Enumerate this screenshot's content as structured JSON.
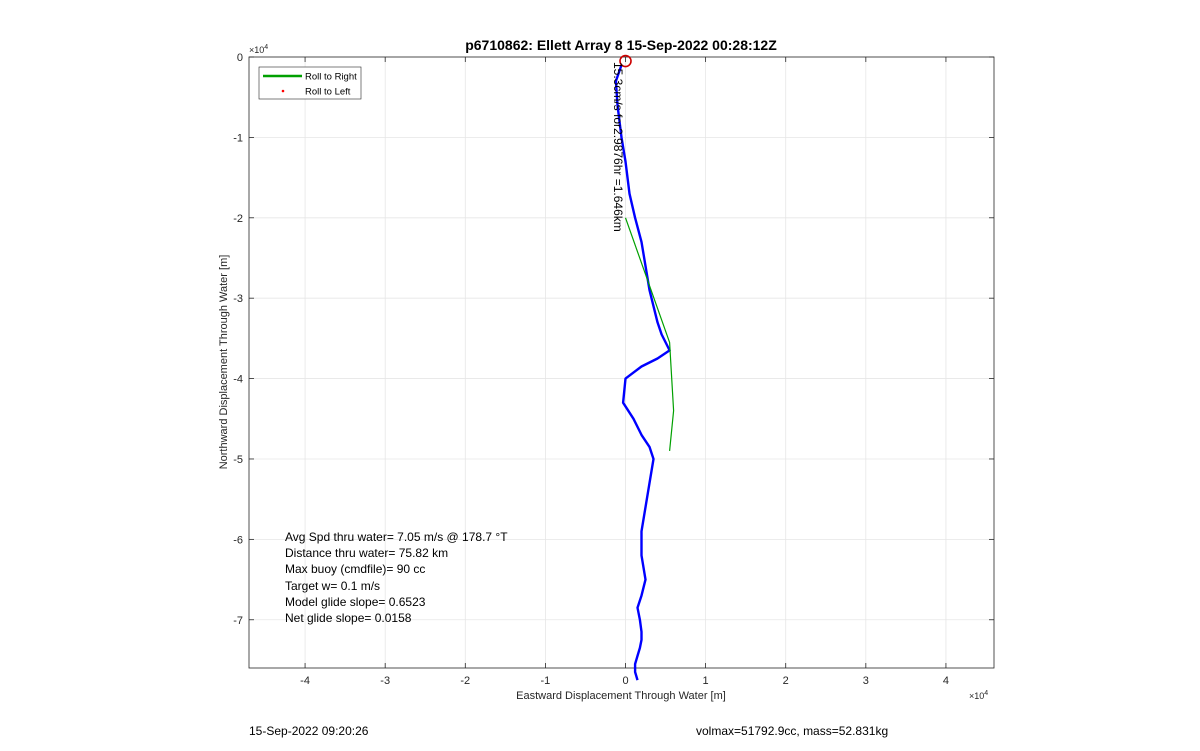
{
  "chart_data": {
    "type": "line",
    "title": "p6710862: Ellett Array 8 15-Sep-2022 00:28:12Z",
    "xlabel": "Eastward Displacement Through Water [m]",
    "ylabel": "Northward Displacement Through Water [m]",
    "x_exponent": "10",
    "x_exponent_power": "4",
    "y_exponent": "10",
    "y_exponent_power": "4",
    "xlim": [
      -4.7,
      4.6
    ],
    "ylim": [
      -7.6,
      0
    ],
    "xticks": [
      -4,
      -3,
      -2,
      -1,
      0,
      1,
      2,
      3,
      4
    ],
    "xtick_labels": [
      "-4",
      "-3",
      "-2",
      "-1",
      "0",
      "1",
      "2",
      "3",
      "4"
    ],
    "yticks": [
      0,
      -1,
      -2,
      -3,
      -4,
      -5,
      -6,
      -7
    ],
    "ytick_labels": [
      "0",
      "-1",
      "-2",
      "-3",
      "-4",
      "-5",
      "-6",
      "-7"
    ],
    "grid": true,
    "legend_position": "top-left",
    "legend": [
      {
        "label": "Roll to Right",
        "color": "#00a000",
        "style": "line"
      },
      {
        "label": "Roll to Left",
        "color": "#ff0000",
        "style": "dot"
      }
    ],
    "series": [
      {
        "name": "track",
        "color": "#0000ff",
        "x": [
          -0.05,
          -0.12,
          -0.1,
          -0.05,
          0.0,
          0.05,
          0.12,
          0.2,
          0.25,
          0.3,
          0.35,
          0.4,
          0.45,
          0.5,
          0.55,
          0.4,
          0.2,
          0.0,
          -0.03,
          0.1,
          0.2,
          0.3,
          0.35,
          0.3,
          0.25,
          0.2,
          0.2,
          0.25,
          0.2,
          0.15,
          0.18,
          0.2,
          0.2,
          0.18,
          0.15,
          0.12,
          0.12,
          0.15
        ],
        "y": [
          -0.1,
          -0.3,
          -0.6,
          -1.0,
          -1.3,
          -1.7,
          -2.0,
          -2.3,
          -2.6,
          -2.9,
          -3.1,
          -3.3,
          -3.45,
          -3.55,
          -3.65,
          -3.75,
          -3.85,
          -4.0,
          -4.3,
          -4.5,
          -4.7,
          -4.85,
          -5.0,
          -5.3,
          -5.6,
          -5.9,
          -6.2,
          -6.5,
          -6.7,
          -6.85,
          -7.0,
          -7.15,
          -7.25,
          -7.35,
          -7.45,
          -7.55,
          -7.65,
          -7.75
        ]
      },
      {
        "name": "heading",
        "color": "#00a000",
        "x": [
          0.0,
          0.55,
          0.6,
          0.55
        ],
        "y": [
          -2.0,
          -3.55,
          -4.4,
          -4.9
        ]
      }
    ],
    "marker": {
      "x": 0.0,
      "y": -0.05,
      "color": "#cc0000"
    },
    "vertical_annotation": "15.3cm/s for2.9876hr =1.646km",
    "stats": [
      "Avg Spd thru water=  7.05 m/s @ 178.7 °T",
      "Distance thru water= 75.82 km",
      "Max buoy (cmdfile)= 90 cc",
      "Target w= 0.1 m/s",
      "Model glide slope= 0.6523",
      "Net glide slope= 0.0158"
    ]
  },
  "footer": {
    "left": "15-Sep-2022 09:20:26",
    "right": "volmax=51792.9cc, mass=52.831kg"
  }
}
